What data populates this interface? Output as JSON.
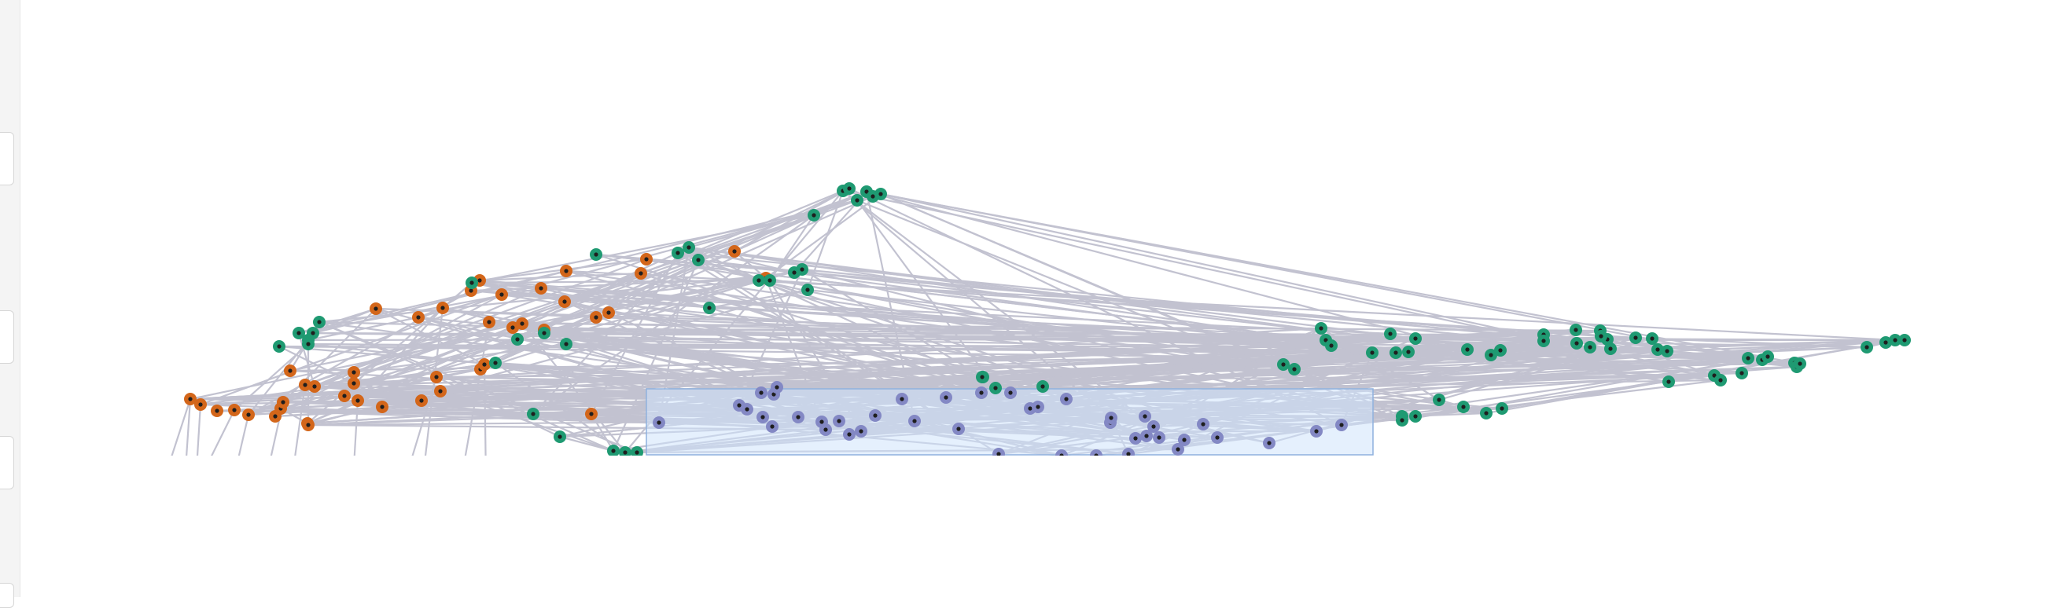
{
  "colors": {
    "background": "#ffffff",
    "edge": "#c2c2d0",
    "selection_fill": "#cfe3fb",
    "selection_stroke": "#8fb1de",
    "node_center": "#1e1e1e",
    "cluster_orange": "#d3661a",
    "cluster_green": "#1f9a72",
    "cluster_purple": "#8388c4"
  },
  "graph": {
    "clusters": [
      "orange",
      "green",
      "purple"
    ],
    "edge_style": "straight-lines",
    "selection_box": "visible"
  },
  "panel": {
    "tabs": [
      {
        "name": "panel-tab-1"
      },
      {
        "name": "panel-tab-2"
      },
      {
        "name": "panel-tab-3"
      },
      {
        "name": "panel-tab-4"
      }
    ]
  }
}
